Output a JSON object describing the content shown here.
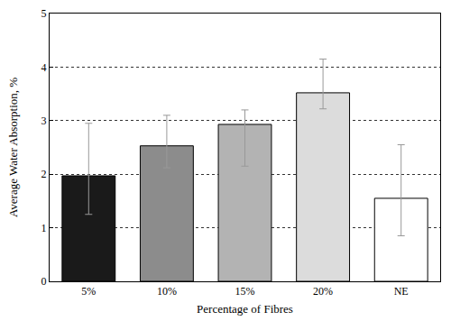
{
  "chart_data": {
    "type": "bar",
    "x_label": "Percentage of Fibres",
    "y_label": "Average Water Absorption, %",
    "categories": [
      "5%",
      "10%",
      "15%",
      "20%",
      "NE"
    ],
    "values": [
      1.97,
      2.53,
      2.93,
      3.52,
      1.55
    ],
    "error_plus": [
      0.98,
      0.57,
      0.27,
      0.63,
      1.0
    ],
    "error_minus": [
      0.72,
      0.41,
      0.78,
      0.3,
      0.7
    ],
    "colors": [
      "#1a1a1a",
      "#8c8c8c",
      "#b3b3b3",
      "#dcdcdc",
      "#ffffff"
    ],
    "ylim": [
      0,
      5
    ],
    "yticks": [
      0,
      1,
      2,
      3,
      4,
      5
    ],
    "grid": true
  }
}
